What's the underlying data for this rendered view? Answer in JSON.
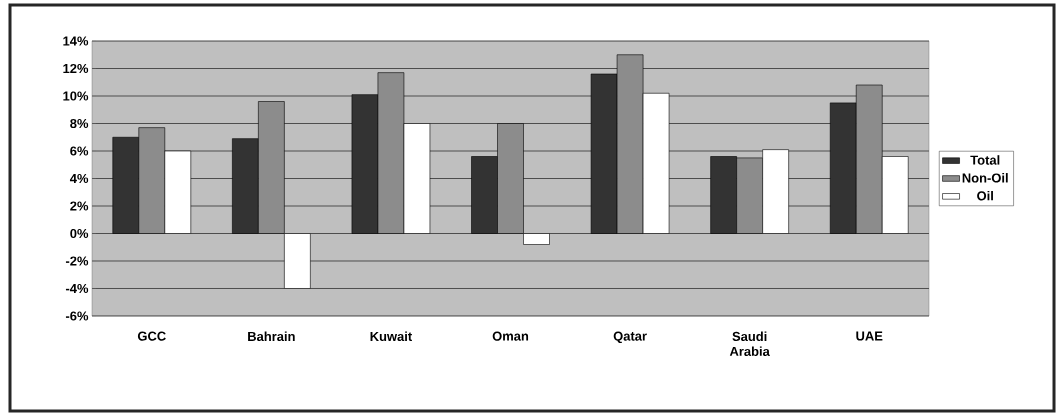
{
  "chart_data": {
    "type": "bar",
    "categories": [
      "GCC",
      "Bahrain",
      "Kuwait",
      "Oman",
      "Qatar",
      "Saudi Arabia",
      "UAE"
    ],
    "series": [
      {
        "name": "Total",
        "color": "#333333",
        "values": [
          7.0,
          6.9,
          10.1,
          5.6,
          11.6,
          5.6,
          9.5
        ]
      },
      {
        "name": "Non-Oil",
        "color": "#8c8c8c",
        "values": [
          7.7,
          9.6,
          11.7,
          8.0,
          13.0,
          5.5,
          10.8
        ]
      },
      {
        "name": "Oil",
        "color": "#ffffff",
        "values": [
          6.0,
          -4.0,
          8.0,
          -0.8,
          10.2,
          6.1,
          5.6
        ]
      }
    ],
    "ylim": [
      -6,
      14
    ],
    "yticks": [
      {
        "value": -6,
        "label": "-6%"
      },
      {
        "value": -4,
        "label": "-4%"
      },
      {
        "value": -2,
        "label": "-2%"
      },
      {
        "value": 0,
        "label": "0%"
      },
      {
        "value": 2,
        "label": "2%"
      },
      {
        "value": 4,
        "label": "4%"
      },
      {
        "value": 6,
        "label": "6%"
      },
      {
        "value": 8,
        "label": "8%"
      },
      {
        "value": 10,
        "label": "10%"
      },
      {
        "value": 12,
        "label": "12%"
      },
      {
        "value": 14,
        "label": "14%"
      }
    ],
    "grid": "y",
    "legend": "right"
  }
}
